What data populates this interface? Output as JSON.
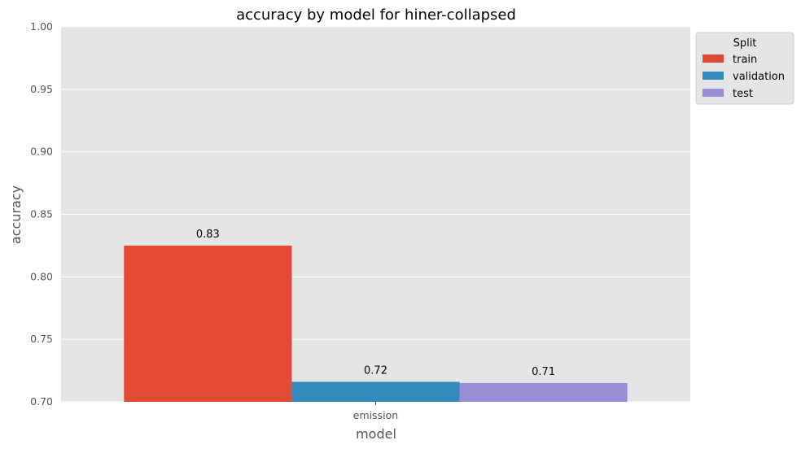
{
  "chart_data": {
    "type": "bar",
    "title": "accuracy by model for hiner-collapsed",
    "xlabel": "model",
    "ylabel": "accuracy",
    "categories": [
      "emission"
    ],
    "ylim": [
      0.7,
      1.0
    ],
    "yticks": [
      "0.70",
      "0.75",
      "0.80",
      "0.85",
      "0.90",
      "0.95",
      "1.00"
    ],
    "grid": true,
    "legend": {
      "title": "Split",
      "placement": "upper-right outside"
    },
    "series": [
      {
        "name": "train",
        "values": [
          0.825
        ],
        "label": "0.83",
        "color": "#E24A33"
      },
      {
        "name": "validation",
        "values": [
          0.716
        ],
        "label": "0.72",
        "color": "#348ABD"
      },
      {
        "name": "test",
        "values": [
          0.715
        ],
        "label": "0.71",
        "color": "#988ED5"
      }
    ]
  },
  "colors": {
    "plot_background": "#E5E5E5",
    "grid": "#FFFFFF"
  }
}
